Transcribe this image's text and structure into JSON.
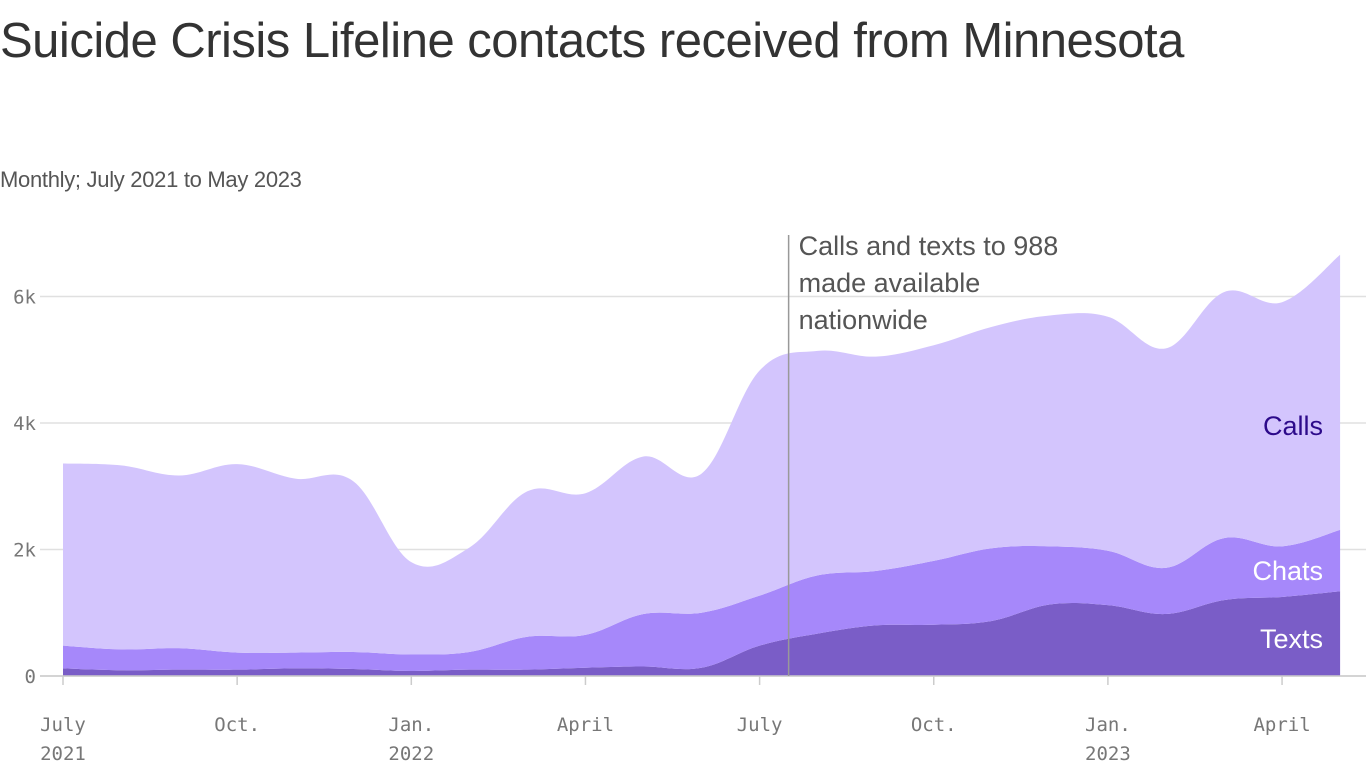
{
  "title": "Suicide Crisis Lifeline contacts received from Minnesota",
  "subtitle": "Monthly; July 2021 to May 2023",
  "chart_data": {
    "type": "area",
    "stacked": true,
    "title": "Suicide Crisis Lifeline contacts received from Minnesota",
    "subtitle": "Monthly; July 2021 to May 2023",
    "xlabel": "",
    "ylabel": "",
    "ylim": [
      0,
      7000
    ],
    "grid": true,
    "x": [
      "2021-07",
      "2021-08",
      "2021-09",
      "2021-10",
      "2021-11",
      "2021-12",
      "2022-01",
      "2022-02",
      "2022-03",
      "2022-04",
      "2022-05",
      "2022-06",
      "2022-07",
      "2022-08",
      "2022-09",
      "2022-10",
      "2022-11",
      "2022-12",
      "2023-01",
      "2023-02",
      "2023-03",
      "2023-04",
      "2023-05"
    ],
    "y_ticks": [
      {
        "value": 0,
        "label": "0"
      },
      {
        "value": 2000,
        "label": "2k"
      },
      {
        "value": 4000,
        "label": "4k"
      },
      {
        "value": 6000,
        "label": "6k"
      }
    ],
    "x_ticks": [
      {
        "x": "2021-07",
        "label": "July",
        "year": "2021"
      },
      {
        "x": "2021-10",
        "label": "Oct.",
        "year": ""
      },
      {
        "x": "2022-01",
        "label": "Jan.",
        "year": "2022"
      },
      {
        "x": "2022-04",
        "label": "April",
        "year": ""
      },
      {
        "x": "2022-07",
        "label": "July",
        "year": ""
      },
      {
        "x": "2022-10",
        "label": "Oct.",
        "year": ""
      },
      {
        "x": "2023-01",
        "label": "Jan.",
        "year": "2023"
      },
      {
        "x": "2023-04",
        "label": "April",
        "year": ""
      }
    ],
    "series": [
      {
        "name": "Texts",
        "color": "#7a5dc7",
        "label_color": "#ffffff",
        "values": [
          120,
          90,
          100,
          100,
          120,
          110,
          80,
          100,
          100,
          130,
          150,
          130,
          480,
          670,
          800,
          810,
          870,
          1130,
          1120,
          980,
          1200,
          1250,
          1340
        ]
      },
      {
        "name": "Chats",
        "color": "#a688fa",
        "label_color": "#ffffff",
        "values": [
          360,
          330,
          340,
          270,
          250,
          270,
          260,
          280,
          520,
          520,
          830,
          870,
          790,
          920,
          860,
          1010,
          1150,
          920,
          860,
          730,
          980,
          800,
          970
        ]
      },
      {
        "name": "Calls",
        "color": "#d3c5fd",
        "label_color": "#2c0a8a",
        "values": [
          2880,
          2910,
          2730,
          2980,
          2750,
          2700,
          1460,
          1650,
          2300,
          2240,
          2490,
          2200,
          3560,
          3550,
          3390,
          3410,
          3500,
          3650,
          3700,
          3470,
          3890,
          3860,
          4350
        ]
      }
    ],
    "annotation": {
      "x": "2022-07-16",
      "lines": [
        "Calls and texts to 988",
        "made available",
        "nationwide"
      ]
    }
  }
}
